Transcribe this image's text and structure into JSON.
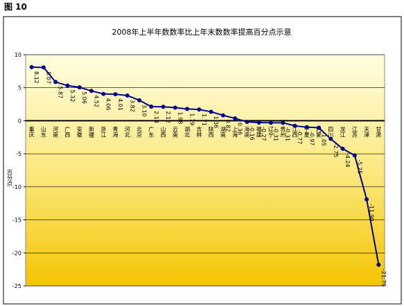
{
  "figure_label": "图 10",
  "chart_data": {
    "type": "line",
    "title": "2008年上半年数数率比上年末数数率提高百分点示意",
    "y_label": "百分点",
    "categories": [
      "重庆",
      "山东",
      "河南",
      "广西",
      "安徽",
      "新疆",
      "浙江",
      "青海",
      "河北",
      "北京",
      "广东",
      "山西",
      "云南",
      "湖北",
      "吉林",
      "陕西",
      "湖南",
      "上海",
      "海南",
      "福建",
      "辽宁",
      "贵州",
      "江西",
      "宁夏",
      "内蒙",
      "四川",
      "龙江",
      "江苏",
      "天津",
      "甘肃"
    ],
    "series": [
      {
        "name": "提高百分点",
        "color": "#00008b",
        "values": [
          8.12,
          8.07,
          5.87,
          5.32,
          5.06,
          4.52,
          4.06,
          4.01,
          3.82,
          3.1,
          2.14,
          2.12,
          1.98,
          1.79,
          1.71,
          1.36,
          0.82,
          0.36,
          -0.16,
          -0.27,
          -0.31,
          -0.31,
          -0.77,
          -0.97,
          -1.05,
          -2.75,
          -4.24,
          -5.25,
          -11.9,
          -21.79
        ],
        "value_labels": [
          "8.12",
          "8.07",
          "5.87",
          "5.32",
          "5.06",
          "4.52",
          "4.06",
          "4.01",
          "3.82",
          "3.10",
          "2.14",
          "2.12",
          "1.98",
          "1.79",
          "1.71",
          "1.36",
          "0.82",
          "0.36",
          "-0.16",
          "-0.27",
          "-0.31",
          "-0.31",
          "-0.77",
          "-0.97",
          "-1.05",
          "-2.75",
          "-4.24",
          "-5.25",
          "-11.90",
          "-21.79"
        ]
      }
    ],
    "ylim": [
      -25,
      10
    ],
    "yticks": [
      -25,
      -20,
      -15,
      -10,
      -5,
      0,
      5,
      10
    ],
    "grid": true
  }
}
